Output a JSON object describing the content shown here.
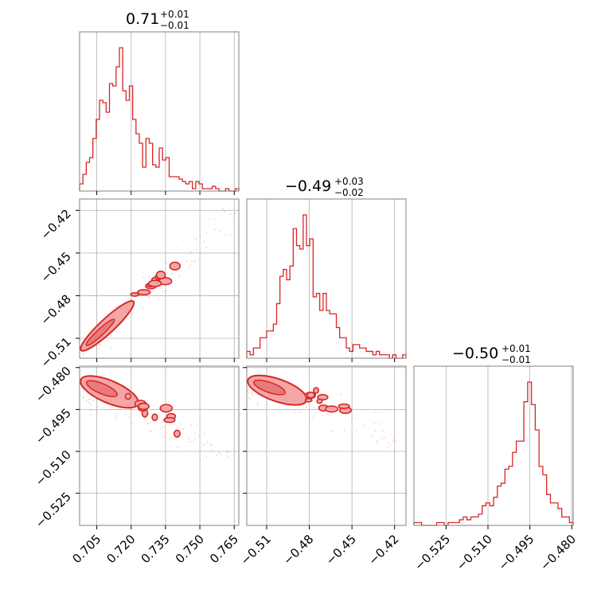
{
  "colors": {
    "series": "#d62728",
    "fill": "#f4a6a6",
    "grid": "#b0b0b0",
    "frame": "#808080"
  },
  "titles": {
    "p0": {
      "main": "0.71",
      "sup": "+0.01",
      "sub": "−0.01"
    },
    "p1": {
      "main": "−0.49",
      "sup": "+0.03",
      "sub": "−0.02"
    },
    "p2": {
      "main": "−0.50",
      "sup": "+0.01",
      "sub": "−0.01"
    }
  },
  "chart_data": {
    "type": "corner",
    "grid": true,
    "parameters": [
      {
        "range": [
          0.6975,
          0.767
        ],
        "ticks": [
          0.705,
          0.72,
          0.735,
          0.75,
          0.765
        ],
        "tick_labels": [
          "0.705",
          "0.720",
          "0.735",
          "0.750",
          "0.765"
        ]
      },
      {
        "range": [
          -0.524,
          -0.412
        ],
        "ticks": [
          -0.51,
          -0.48,
          -0.45,
          -0.42
        ],
        "tick_labels": [
          "−0.51",
          "−0.48",
          "−0.45",
          "−0.42"
        ]
      },
      {
        "range": [
          -0.5365,
          -0.4795
        ],
        "ticks": [
          -0.525,
          -0.51,
          -0.495,
          -0.48
        ],
        "tick_labels": [
          "−0.525",
          "−0.510",
          "−0.495",
          "−0.480"
        ]
      }
    ],
    "histograms": [
      {
        "param": 0,
        "values": [
          3,
          7,
          12,
          14,
          22,
          30,
          38,
          37,
          33,
          45,
          44,
          52,
          60,
          42,
          38,
          44,
          30,
          24,
          20,
          10,
          22,
          20,
          11,
          10,
          18,
          13,
          14,
          6,
          6,
          6,
          5,
          4,
          3,
          4,
          1,
          4,
          3,
          1,
          1,
          1,
          2,
          1,
          0,
          0,
          1,
          0,
          0,
          1
        ]
      },
      {
        "param": 1,
        "values": [
          2,
          1,
          3,
          3,
          6,
          6,
          8,
          8,
          10,
          16,
          24,
          26,
          23,
          27,
          38,
          33,
          32,
          42,
          33,
          35,
          18,
          19,
          14,
          19,
          14,
          13,
          13,
          9,
          6,
          6,
          3,
          2,
          4,
          4,
          3,
          3,
          2,
          2,
          1,
          2,
          1,
          1,
          1,
          0,
          1,
          0,
          0,
          1
        ]
      },
      {
        "param": 2,
        "values": [
          1,
          1,
          0,
          0,
          0,
          0,
          1,
          1,
          0,
          1,
          1,
          1,
          2,
          3,
          2,
          3,
          3,
          4,
          7,
          8,
          7,
          10,
          14,
          15,
          20,
          21,
          26,
          30,
          30,
          44,
          51,
          43,
          34,
          21,
          18,
          11,
          8,
          8,
          6,
          3,
          3,
          1
        ]
      }
    ],
    "pairs": [
      {
        "x_param": 0,
        "y_param": 1,
        "trend": {
          "slope": 1.5,
          "at_x": 0.705,
          "y": -0.51
        },
        "scatter_extent": {
          "x": [
            0.699,
            0.766
          ],
          "y": [
            -0.523,
            -0.415
          ]
        }
      },
      {
        "x_param": 0,
        "y_param": 2,
        "trend": {
          "slope": -0.35,
          "at_x": 0.705,
          "y": -0.491
        },
        "scatter_extent": {
          "x": [
            0.699,
            0.766
          ],
          "y": [
            -0.53,
            -0.481
          ]
        }
      },
      {
        "x_param": 1,
        "y_param": 2,
        "trend": {
          "slope": -0.18,
          "at_x": -0.51,
          "y": -0.489
        },
        "scatter_extent": {
          "x": [
            -0.523,
            -0.415
          ],
          "y": [
            -0.52,
            -0.481
          ]
        }
      }
    ]
  }
}
